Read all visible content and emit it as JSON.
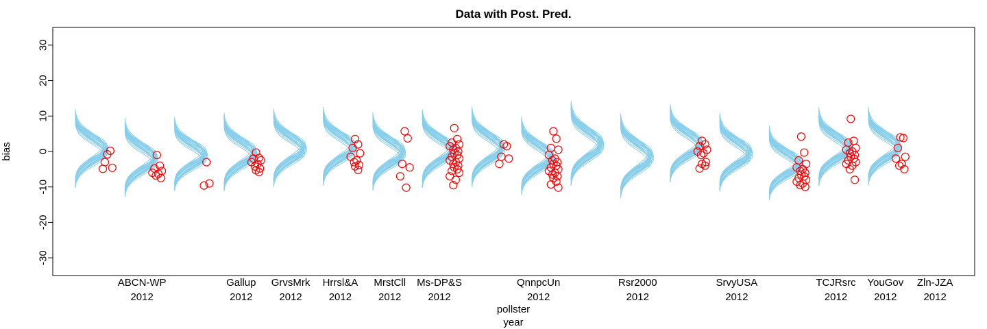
{
  "chart_data": {
    "type": "scatter",
    "title": "Data with Post. Pred.",
    "xlabel_line1": "pollster",
    "xlabel_line2": "year",
    "ylabel": "bias",
    "ylim": [
      -35,
      35
    ],
    "yticks": [
      -30,
      -20,
      -10,
      0,
      10,
      20,
      30
    ],
    "xlim": [
      0.2,
      18.8
    ],
    "point_color": "#FF0000",
    "curve_color": "#87CEEB",
    "categories": [
      {
        "pos": 2,
        "name": "ABCN-WP",
        "year": "2012"
      },
      {
        "pos": 4,
        "name": "Gallup",
        "year": "2012"
      },
      {
        "pos": 5,
        "name": "GrvsMrk",
        "year": "2012"
      },
      {
        "pos": 6,
        "name": "Hrrsl&A",
        "year": "2012"
      },
      {
        "pos": 7,
        "name": "MrstCll",
        "year": "2012"
      },
      {
        "pos": 8,
        "name": "Ms-DP&S",
        "year": "2012"
      },
      {
        "pos": 10,
        "name": "QnnpcUn",
        "year": "2012"
      },
      {
        "pos": 12,
        "name": "Rsr2000",
        "year": "2012"
      },
      {
        "pos": 14,
        "name": "SrvyUSA",
        "year": "2012"
      },
      {
        "pos": 16,
        "name": "TCJRsrc",
        "year": "2012"
      },
      {
        "pos": 17,
        "name": "YouGov",
        "year": "2012"
      },
      {
        "pos": 18,
        "name": "Zln-JZA",
        "year": "2012"
      }
    ],
    "groups": [
      {
        "pos": 1,
        "mean": 0.5,
        "sd": 3.2,
        "points": [
          -0.8,
          0.2,
          -3.0,
          -4.6,
          -4.9
        ]
      },
      {
        "pos": 2,
        "mean": -2.0,
        "sd": 3.2,
        "points": [
          -1.0,
          -4.0,
          -4.8,
          -5.5,
          -6.0,
          -6.3,
          -6.8,
          -7.5
        ]
      },
      {
        "pos": 3,
        "mean": -1.0,
        "sd": 3.0,
        "points": [
          -3.0,
          -9.0,
          -9.6
        ]
      },
      {
        "pos": 4,
        "mean": -0.5,
        "sd": 3.2,
        "points": [
          -0.3,
          -1.8,
          -2.0,
          -2.5,
          -3.0,
          -3.5,
          -4.2,
          -4.8,
          -5.3,
          -5.8
        ]
      },
      {
        "pos": 5,
        "mean": 0.8,
        "sd": 3.2,
        "points": []
      },
      {
        "pos": 6,
        "mean": 1.2,
        "sd": 3.2,
        "points": [
          3.5,
          2.0,
          1.0,
          -0.5,
          -1.5,
          -2.5,
          -3.0,
          -3.8,
          -4.2,
          -5.2
        ]
      },
      {
        "pos": 7,
        "mean": -0.3,
        "sd": 3.2,
        "points": [
          5.7,
          3.7,
          -3.5,
          -4.5,
          -7.0,
          -10.2
        ]
      },
      {
        "pos": 8,
        "mean": 0.5,
        "sd": 3.2,
        "points": [
          6.6,
          3.5,
          2.5,
          2.0,
          1.5,
          1.0,
          0.5,
          0.0,
          -0.5,
          -1.0,
          -1.5,
          -2.0,
          -2.5,
          -3.0,
          -3.5,
          -4.0,
          -4.5,
          -5.0,
          -5.5,
          -6.0,
          -7.0,
          -8.0,
          -9.5
        ]
      },
      {
        "pos": 9,
        "mean": 1.0,
        "sd": 3.3,
        "points": [
          2.0,
          1.5,
          -1.5,
          -2.0,
          -3.5
        ]
      },
      {
        "pos": 10,
        "mean": -1.5,
        "sd": 3.2,
        "points": [
          5.7,
          3.6,
          1.0,
          0.5,
          -1.0,
          -2.0,
          -2.5,
          -3.0,
          -3.5,
          -4.0,
          -4.5,
          -5.0,
          -5.5,
          -6.0,
          -6.5,
          -7.0,
          -7.5,
          -8.5,
          -9.3,
          -10.2
        ]
      },
      {
        "pos": 11,
        "mean": 2.0,
        "sd": 3.5,
        "points": []
      },
      {
        "pos": 12,
        "mean": -1.5,
        "sd": 3.5,
        "points": []
      },
      {
        "pos": 13,
        "mean": 2.0,
        "sd": 3.2,
        "points": [
          3.0,
          2.0,
          1.5,
          0.5,
          0.0,
          -0.5,
          -1.0,
          -3.0,
          -3.5,
          -4.0,
          -4.8
        ]
      },
      {
        "pos": 14,
        "mean": -0.5,
        "sd": 3.2,
        "points": []
      },
      {
        "pos": 15,
        "mean": -3.5,
        "sd": 3.0,
        "points": [
          4.2,
          -0.3,
          -2.5,
          -3.5,
          -4.5,
          -5.0,
          -5.5,
          -6.0,
          -6.5,
          -7.0,
          -7.5,
          -8.0,
          -8.5,
          -9.0,
          -9.5,
          -10.0
        ]
      },
      {
        "pos": 16,
        "mean": 1.0,
        "sd": 3.2,
        "points": [
          9.2,
          3.0,
          2.5,
          1.0,
          0.5,
          0.0,
          -0.5,
          -1.0,
          -1.5,
          -2.0,
          -2.5,
          -3.0,
          -3.5,
          -4.0,
          -5.0,
          -8.0
        ]
      },
      {
        "pos": 17,
        "mean": 1.2,
        "sd": 3.2,
        "points": [
          4.0,
          3.8,
          1.0,
          -1.5,
          -2.0,
          -3.5,
          -4.0,
          -5.0
        ]
      }
    ]
  }
}
